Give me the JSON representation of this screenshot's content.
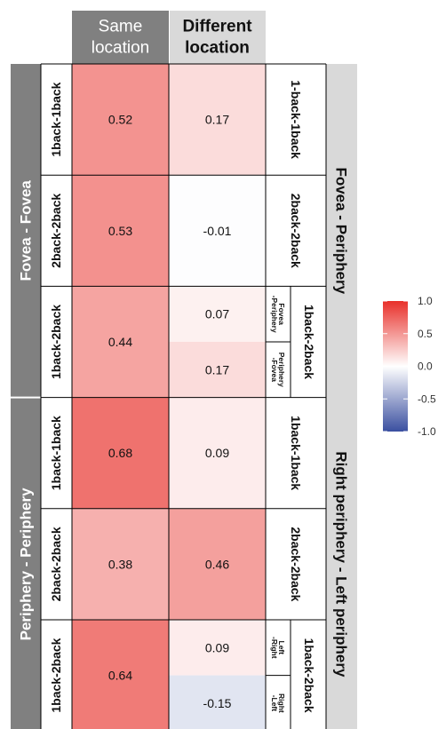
{
  "chart_data": {
    "type": "heatmap",
    "columns": [
      "Same\nlocation",
      "Different\nlocation"
    ],
    "left_groups": [
      "Fovea - Fovea",
      "Periphery - Periphery"
    ],
    "right_groups": [
      "Fovea - Periphery",
      "Right periphery - Left periphery"
    ],
    "row_labels": [
      "1back-1back",
      "2back-2back",
      "1back-2back",
      "1back-1back",
      "2back-2back",
      "1back-2back"
    ],
    "same_location": [
      0.52,
      0.53,
      0.44,
      0.68,
      0.38,
      0.64
    ],
    "different_location": [
      {
        "label": "1-back-1back",
        "values": [
          0.17
        ]
      },
      {
        "label": "2back-2back",
        "values": [
          -0.01
        ]
      },
      {
        "label": "1back-2back",
        "sublabels": [
          "Fovea\n-Periphery",
          "Periphery\n-Fovea"
        ],
        "values": [
          0.07,
          0.17
        ]
      },
      {
        "label": "1back-1back",
        "values": [
          0.09
        ]
      },
      {
        "label": "2back-2back",
        "values": [
          0.46
        ]
      },
      {
        "label": "1back-2back",
        "sublabels": [
          "Left\n-Right",
          "Right\n-Left"
        ],
        "values": [
          0.09,
          -0.15
        ]
      }
    ],
    "colorbar": {
      "ticks": [
        "1.0",
        "0.5",
        "0.0",
        "-0.5",
        "-1.0"
      ],
      "tick_values": [
        1.0,
        0.5,
        0.0,
        -0.5,
        -1.0
      ],
      "range": [
        -1.0,
        1.0
      ],
      "colors": {
        "high": "#e8302a",
        "mid": "#ffffff",
        "low": "#3a4fa0"
      }
    },
    "strip_colors": {
      "column_header": "#808080",
      "left_strip": "#808080",
      "right_strip": "#d9d9d9"
    }
  }
}
